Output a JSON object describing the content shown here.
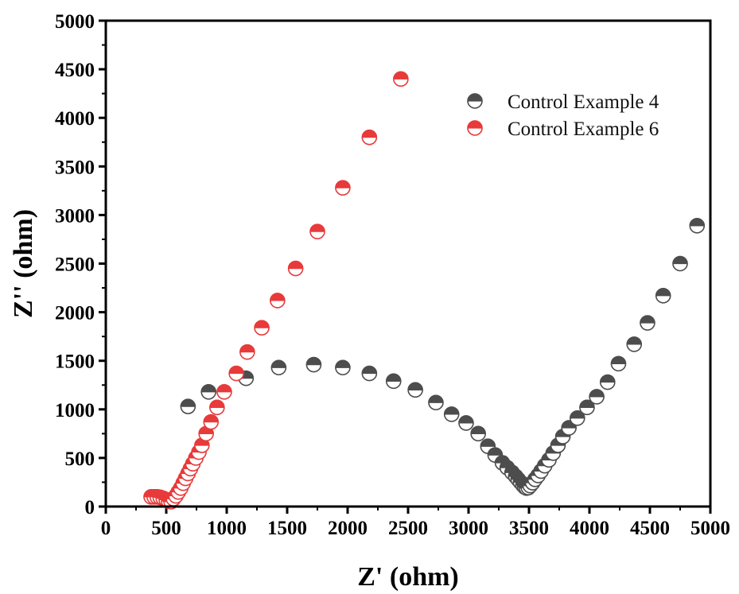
{
  "chart_data": {
    "type": "scatter",
    "title": "",
    "xlabel": "Z' (ohm)",
    "ylabel": "Z'' (ohm)",
    "xlim": [
      0,
      5000
    ],
    "ylim": [
      0,
      5000
    ],
    "x_ticks": [
      0,
      500,
      1000,
      1500,
      2000,
      2500,
      3000,
      3500,
      4000,
      4500,
      5000
    ],
    "y_ticks": [
      0,
      500,
      1000,
      1500,
      2000,
      2500,
      3000,
      3500,
      4000,
      4500,
      5000
    ],
    "grid": false,
    "legend_position": "top-right",
    "marker": "half-filled circle (top half filled, bottom half open)",
    "series": [
      {
        "name": "Control Example 4",
        "color": "#4d4d4d",
        "points": [
          [
            680,
            1030
          ],
          [
            850,
            1180
          ],
          [
            1160,
            1320
          ],
          [
            1430,
            1430
          ],
          [
            1720,
            1460
          ],
          [
            1960,
            1430
          ],
          [
            2180,
            1370
          ],
          [
            2380,
            1290
          ],
          [
            2560,
            1200
          ],
          [
            2730,
            1070
          ],
          [
            2860,
            950
          ],
          [
            2980,
            860
          ],
          [
            3080,
            750
          ],
          [
            3160,
            620
          ],
          [
            3220,
            530
          ],
          [
            3280,
            450
          ],
          [
            3320,
            400
          ],
          [
            3360,
            350
          ],
          [
            3390,
            310
          ],
          [
            3410,
            280
          ],
          [
            3430,
            250
          ],
          [
            3450,
            220
          ],
          [
            3465,
            200
          ],
          [
            3480,
            190
          ],
          [
            3495,
            195
          ],
          [
            3510,
            215
          ],
          [
            3530,
            245
          ],
          [
            3550,
            280
          ],
          [
            3575,
            320
          ],
          [
            3600,
            365
          ],
          [
            3630,
            420
          ],
          [
            3665,
            480
          ],
          [
            3700,
            550
          ],
          [
            3740,
            630
          ],
          [
            3780,
            720
          ],
          [
            3830,
            810
          ],
          [
            3900,
            910
          ],
          [
            3980,
            1020
          ],
          [
            4060,
            1130
          ],
          [
            4150,
            1280
          ],
          [
            4240,
            1470
          ],
          [
            4370,
            1670
          ],
          [
            4480,
            1890
          ],
          [
            4610,
            2170
          ],
          [
            4750,
            2500
          ],
          [
            4890,
            2890
          ]
        ]
      },
      {
        "name": "Control Example 6",
        "color": "#e83a3a",
        "points": [
          [
            375,
            100
          ],
          [
            400,
            100
          ],
          [
            425,
            100
          ],
          [
            450,
            95
          ],
          [
            475,
            85
          ],
          [
            500,
            70
          ],
          [
            520,
            55
          ],
          [
            540,
            50
          ],
          [
            560,
            80
          ],
          [
            580,
            110
          ],
          [
            600,
            150
          ],
          [
            620,
            190
          ],
          [
            640,
            240
          ],
          [
            660,
            290
          ],
          [
            680,
            340
          ],
          [
            700,
            390
          ],
          [
            720,
            440
          ],
          [
            745,
            500
          ],
          [
            770,
            560
          ],
          [
            795,
            630
          ],
          [
            830,
            750
          ],
          [
            870,
            870
          ],
          [
            920,
            1020
          ],
          [
            980,
            1180
          ],
          [
            1080,
            1370
          ],
          [
            1170,
            1590
          ],
          [
            1290,
            1840
          ],
          [
            1420,
            2120
          ],
          [
            1570,
            2450
          ],
          [
            1750,
            2830
          ],
          [
            1960,
            3280
          ],
          [
            2180,
            3800
          ],
          [
            2440,
            4400
          ]
        ]
      }
    ]
  }
}
